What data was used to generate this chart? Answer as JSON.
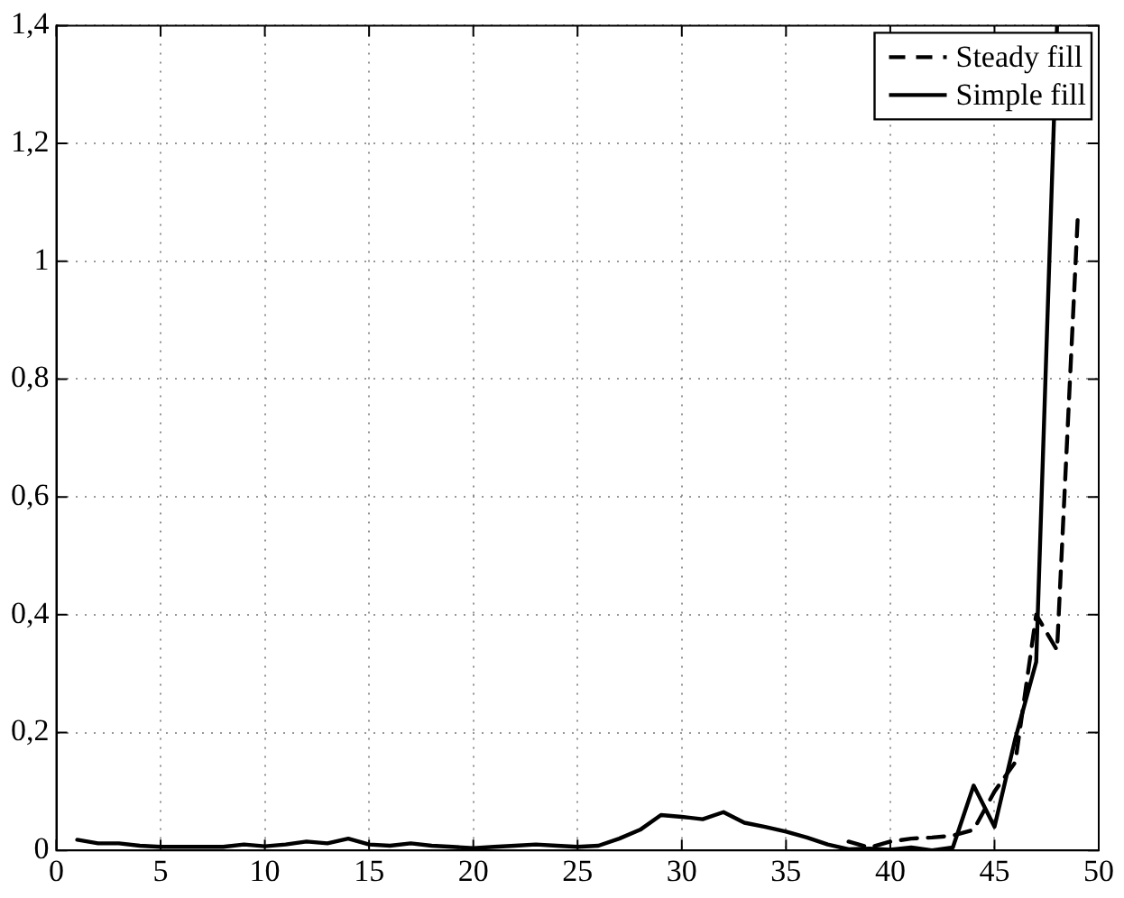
{
  "chart_data": {
    "type": "line",
    "legend": "top right",
    "grid": true,
    "marker": "none",
    "xlim": [
      0,
      50
    ],
    "xticks": [
      0,
      5,
      10,
      15,
      20,
      25,
      30,
      35,
      40,
      45,
      50
    ],
    "ylim": [
      0,
      1.4
    ],
    "yticks": [
      0,
      {
        "value": 0.2,
        "label": "0,2"
      },
      {
        "value": 0.4,
        "label": "0,4"
      },
      {
        "value": 0.6,
        "label": "0,6"
      },
      {
        "value": 0.8,
        "label": "0,8"
      },
      1,
      {
        "value": 1.2,
        "label": "1,2"
      },
      {
        "value": 1.4,
        "label": "1,4"
      }
    ],
    "series": [
      {
        "name": "Steady fill",
        "color": "#000000",
        "line_style": "dashed",
        "x": [
          38,
          39,
          40,
          41,
          42,
          43,
          44,
          45,
          46,
          47,
          48,
          49
        ],
        "values": [
          0.015,
          0.005,
          0.015,
          0.02,
          0.022,
          0.025,
          0.035,
          0.1,
          0.15,
          0.4,
          0.34,
          1.08
        ]
      },
      {
        "name": "Simple fill",
        "color": "#000000",
        "line_style": "solid",
        "x": [
          1,
          2,
          3,
          4,
          5,
          6,
          7,
          8,
          9,
          10,
          11,
          12,
          13,
          14,
          15,
          16,
          17,
          18,
          19,
          20,
          21,
          22,
          23,
          24,
          25,
          26,
          27,
          28,
          29,
          30,
          31,
          32,
          33,
          34,
          35,
          36,
          37,
          38,
          39,
          40,
          41,
          42,
          43,
          44,
          45,
          46,
          47,
          48
        ],
        "values": [
          0.018,
          0.012,
          0.012,
          0.008,
          0.006,
          0.006,
          0.006,
          0.006,
          0.01,
          0.007,
          0.01,
          0.015,
          0.012,
          0.02,
          0.01,
          0.008,
          0.012,
          0.008,
          0.006,
          0.004,
          0.006,
          0.008,
          0.01,
          0.008,
          0.006,
          0.008,
          0.02,
          0.035,
          0.06,
          0.057,
          0.053,
          0.065,
          0.047,
          0.04,
          0.032,
          0.022,
          0.01,
          0.002,
          0.003,
          0.001,
          0.005,
          0,
          0.005,
          0.11,
          0.04,
          0.19,
          0.32,
          1.4
        ]
      }
    ]
  }
}
